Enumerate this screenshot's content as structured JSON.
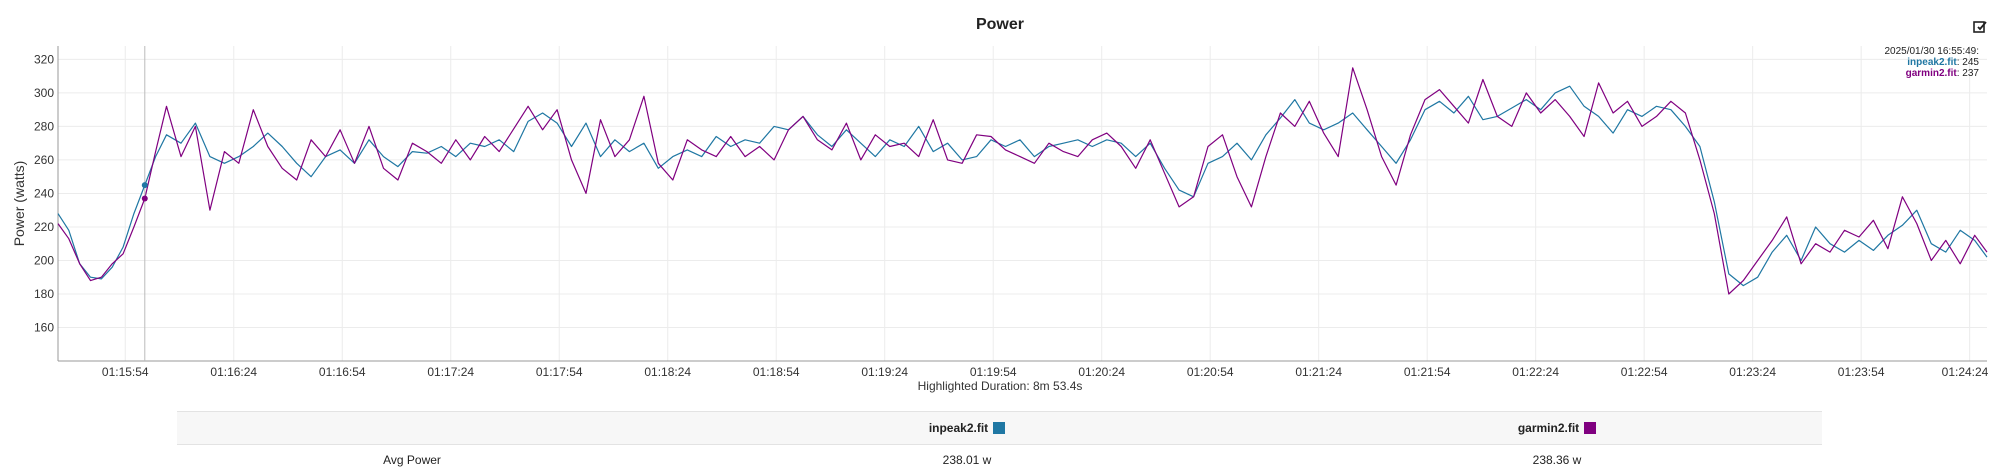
{
  "chart_data": {
    "type": "line",
    "title": "Power",
    "ylabel": "Power (watts)",
    "xlabel": "Highlighted Duration: 8m 53.4s",
    "ylim": [
      140,
      328
    ],
    "y_ticks": [
      160,
      180,
      200,
      220,
      240,
      260,
      280,
      300,
      320
    ],
    "x_tick_labels": [
      "01:15:54",
      "01:16:24",
      "01:16:54",
      "01:17:24",
      "01:17:54",
      "01:18:24",
      "01:18:54",
      "01:19:24",
      "01:19:54",
      "01:20:24",
      "01:20:54",
      "01:21:24",
      "01:21:54",
      "01:22:24",
      "01:22:54",
      "01:23:24",
      "01:23:54",
      "01:24:24"
    ],
    "x_range_seconds": [
      0,
      533.4
    ],
    "x_first_tick_offset": 18.6,
    "x_tick_step": 30,
    "grid": true,
    "colors": {
      "inpeak": "#1f77a3",
      "garmin": "#800080"
    },
    "series": [
      {
        "name": "inpeak2.fit",
        "points": [
          [
            0,
            228
          ],
          [
            3,
            218
          ],
          [
            6,
            198
          ],
          [
            9,
            190
          ],
          [
            12,
            189
          ],
          [
            15,
            196
          ],
          [
            18,
            208
          ],
          [
            21,
            228
          ],
          [
            24,
            245
          ],
          [
            27,
            262
          ],
          [
            30,
            275
          ],
          [
            34,
            270
          ],
          [
            38,
            282
          ],
          [
            42,
            262
          ],
          [
            46,
            258
          ],
          [
            50,
            262
          ],
          [
            54,
            268
          ],
          [
            58,
            276
          ],
          [
            62,
            268
          ],
          [
            66,
            258
          ],
          [
            70,
            250
          ],
          [
            74,
            262
          ],
          [
            78,
            266
          ],
          [
            82,
            258
          ],
          [
            86,
            272
          ],
          [
            90,
            262
          ],
          [
            94,
            256
          ],
          [
            98,
            265
          ],
          [
            102,
            264
          ],
          [
            106,
            268
          ],
          [
            110,
            262
          ],
          [
            114,
            270
          ],
          [
            118,
            268
          ],
          [
            122,
            272
          ],
          [
            126,
            265
          ],
          [
            130,
            283
          ],
          [
            134,
            288
          ],
          [
            138,
            282
          ],
          [
            142,
            268
          ],
          [
            146,
            282
          ],
          [
            150,
            262
          ],
          [
            154,
            272
          ],
          [
            158,
            265
          ],
          [
            162,
            270
          ],
          [
            166,
            255
          ],
          [
            170,
            262
          ],
          [
            174,
            266
          ],
          [
            178,
            262
          ],
          [
            182,
            274
          ],
          [
            186,
            268
          ],
          [
            190,
            272
          ],
          [
            194,
            270
          ],
          [
            198,
            280
          ],
          [
            202,
            278
          ],
          [
            206,
            286
          ],
          [
            210,
            275
          ],
          [
            214,
            268
          ],
          [
            218,
            278
          ],
          [
            222,
            270
          ],
          [
            226,
            262
          ],
          [
            230,
            272
          ],
          [
            234,
            268
          ],
          [
            238,
            280
          ],
          [
            242,
            265
          ],
          [
            246,
            270
          ],
          [
            250,
            260
          ],
          [
            254,
            262
          ],
          [
            258,
            272
          ],
          [
            262,
            268
          ],
          [
            266,
            272
          ],
          [
            270,
            262
          ],
          [
            274,
            268
          ],
          [
            278,
            270
          ],
          [
            282,
            272
          ],
          [
            286,
            268
          ],
          [
            290,
            272
          ],
          [
            294,
            270
          ],
          [
            298,
            262
          ],
          [
            302,
            270
          ],
          [
            306,
            255
          ],
          [
            310,
            242
          ],
          [
            314,
            238
          ],
          [
            318,
            258
          ],
          [
            322,
            262
          ],
          [
            326,
            270
          ],
          [
            330,
            260
          ],
          [
            334,
            275
          ],
          [
            338,
            285
          ],
          [
            342,
            296
          ],
          [
            346,
            282
          ],
          [
            350,
            278
          ],
          [
            354,
            282
          ],
          [
            358,
            288
          ],
          [
            362,
            278
          ],
          [
            366,
            268
          ],
          [
            370,
            258
          ],
          [
            374,
            272
          ],
          [
            378,
            290
          ],
          [
            382,
            295
          ],
          [
            386,
            288
          ],
          [
            390,
            298
          ],
          [
            394,
            284
          ],
          [
            398,
            286
          ],
          [
            402,
            291
          ],
          [
            406,
            296
          ],
          [
            410,
            290
          ],
          [
            414,
            300
          ],
          [
            418,
            304
          ],
          [
            422,
            292
          ],
          [
            426,
            286
          ],
          [
            430,
            276
          ],
          [
            434,
            290
          ],
          [
            438,
            286
          ],
          [
            442,
            292
          ],
          [
            446,
            290
          ],
          [
            450,
            280
          ],
          [
            454,
            268
          ],
          [
            458,
            235
          ],
          [
            462,
            192
          ],
          [
            466,
            185
          ],
          [
            470,
            190
          ],
          [
            474,
            205
          ],
          [
            478,
            215
          ],
          [
            482,
            200
          ],
          [
            486,
            220
          ],
          [
            490,
            210
          ],
          [
            494,
            205
          ],
          [
            498,
            212
          ],
          [
            502,
            206
          ],
          [
            506,
            215
          ],
          [
            510,
            221
          ],
          [
            514,
            230
          ],
          [
            518,
            210
          ],
          [
            522,
            205
          ],
          [
            526,
            218
          ],
          [
            530,
            212
          ],
          [
            533.4,
            202
          ]
        ]
      },
      {
        "name": "garmin2.fit",
        "points": [
          [
            0,
            222
          ],
          [
            3,
            213
          ],
          [
            6,
            198
          ],
          [
            9,
            188
          ],
          [
            12,
            190
          ],
          [
            15,
            198
          ],
          [
            18,
            204
          ],
          [
            21,
            220
          ],
          [
            24,
            237
          ],
          [
            27,
            265
          ],
          [
            30,
            292
          ],
          [
            34,
            262
          ],
          [
            38,
            280
          ],
          [
            42,
            230
          ],
          [
            46,
            265
          ],
          [
            50,
            258
          ],
          [
            54,
            290
          ],
          [
            58,
            268
          ],
          [
            62,
            255
          ],
          [
            66,
            248
          ],
          [
            70,
            272
          ],
          [
            74,
            262
          ],
          [
            78,
            278
          ],
          [
            82,
            258
          ],
          [
            86,
            280
          ],
          [
            90,
            255
          ],
          [
            94,
            248
          ],
          [
            98,
            270
          ],
          [
            102,
            265
          ],
          [
            106,
            258
          ],
          [
            110,
            272
          ],
          [
            114,
            260
          ],
          [
            118,
            274
          ],
          [
            122,
            265
          ],
          [
            130,
            292
          ],
          [
            134,
            278
          ],
          [
            138,
            290
          ],
          [
            142,
            260
          ],
          [
            146,
            240
          ],
          [
            150,
            284
          ],
          [
            154,
            262
          ],
          [
            158,
            272
          ],
          [
            162,
            298
          ],
          [
            166,
            258
          ],
          [
            170,
            248
          ],
          [
            174,
            272
          ],
          [
            178,
            266
          ],
          [
            182,
            262
          ],
          [
            186,
            274
          ],
          [
            190,
            262
          ],
          [
            194,
            268
          ],
          [
            198,
            260
          ],
          [
            202,
            278
          ],
          [
            206,
            286
          ],
          [
            210,
            272
          ],
          [
            214,
            266
          ],
          [
            218,
            282
          ],
          [
            222,
            260
          ],
          [
            226,
            275
          ],
          [
            230,
            268
          ],
          [
            234,
            270
          ],
          [
            238,
            262
          ],
          [
            242,
            284
          ],
          [
            246,
            260
          ],
          [
            250,
            258
          ],
          [
            254,
            275
          ],
          [
            258,
            274
          ],
          [
            262,
            266
          ],
          [
            266,
            262
          ],
          [
            270,
            258
          ],
          [
            274,
            270
          ],
          [
            278,
            265
          ],
          [
            282,
            262
          ],
          [
            286,
            272
          ],
          [
            290,
            276
          ],
          [
            294,
            268
          ],
          [
            298,
            255
          ],
          [
            302,
            272
          ],
          [
            306,
            252
          ],
          [
            310,
            232
          ],
          [
            314,
            238
          ],
          [
            318,
            268
          ],
          [
            322,
            275
          ],
          [
            326,
            250
          ],
          [
            330,
            232
          ],
          [
            334,
            262
          ],
          [
            338,
            288
          ],
          [
            342,
            280
          ],
          [
            346,
            295
          ],
          [
            350,
            276
          ],
          [
            354,
            262
          ],
          [
            358,
            315
          ],
          [
            362,
            290
          ],
          [
            366,
            262
          ],
          [
            370,
            245
          ],
          [
            374,
            275
          ],
          [
            378,
            296
          ],
          [
            382,
            302
          ],
          [
            386,
            292
          ],
          [
            390,
            282
          ],
          [
            394,
            308
          ],
          [
            398,
            286
          ],
          [
            402,
            280
          ],
          [
            406,
            300
          ],
          [
            410,
            288
          ],
          [
            414,
            296
          ],
          [
            418,
            286
          ],
          [
            422,
            274
          ],
          [
            426,
            306
          ],
          [
            430,
            288
          ],
          [
            434,
            295
          ],
          [
            438,
            280
          ],
          [
            442,
            286
          ],
          [
            446,
            295
          ],
          [
            450,
            288
          ],
          [
            454,
            260
          ],
          [
            458,
            228
          ],
          [
            462,
            180
          ],
          [
            466,
            188
          ],
          [
            470,
            200
          ],
          [
            474,
            212
          ],
          [
            478,
            226
          ],
          [
            482,
            198
          ],
          [
            486,
            210
          ],
          [
            490,
            205
          ],
          [
            494,
            218
          ],
          [
            498,
            214
          ],
          [
            502,
            224
          ],
          [
            506,
            207
          ],
          [
            510,
            238
          ],
          [
            514,
            222
          ],
          [
            518,
            200
          ],
          [
            522,
            212
          ],
          [
            526,
            198
          ],
          [
            530,
            215
          ],
          [
            533.4,
            205
          ]
        ]
      }
    ],
    "tooltip": {
      "time": "2025/01/30 16:55:49:",
      "entries": [
        {
          "label": "inpeak2.fit",
          "value": ": 245"
        },
        {
          "label": "garmin2.fit",
          "value": ": 237"
        }
      ]
    }
  },
  "table": {
    "col_a": "inpeak2.fit",
    "col_b": "garmin2.fit",
    "row_label": "Avg Power",
    "row_a": "238.01 w",
    "row_b": "238.36 w"
  }
}
